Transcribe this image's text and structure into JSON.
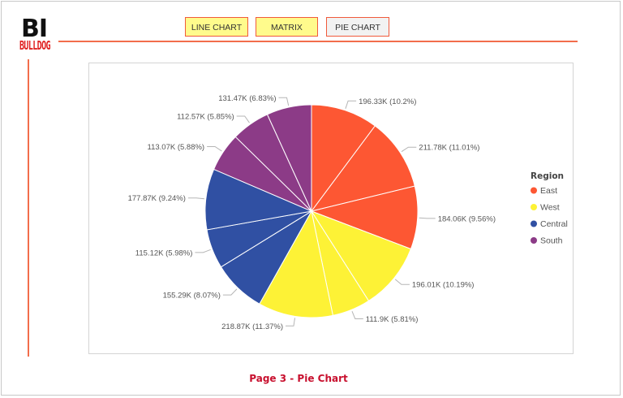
{
  "logo": {
    "bi": "BI",
    "brand": "BULLDOG"
  },
  "nav": {
    "line_chart": "LINE CHART",
    "matrix": "MATRIX",
    "pie_chart": "PIE CHART"
  },
  "footer": {
    "title": "Page 3 - Pie Chart"
  },
  "chart_data": {
    "type": "pie",
    "legend_title": "Region",
    "legend_position": "right",
    "regions": [
      {
        "name": "East",
        "color": "#fd5733"
      },
      {
        "name": "West",
        "color": "#fdf236"
      },
      {
        "name": "Central",
        "color": "#3050a3"
      },
      {
        "name": "South",
        "color": "#8c3b87"
      }
    ],
    "slices": [
      {
        "region": "East",
        "value": 196.33,
        "label": "196.33K (10.2%)"
      },
      {
        "region": "East",
        "value": 211.78,
        "label": "211.78K (11.01%)"
      },
      {
        "region": "East",
        "value": 184.06,
        "label": "184.06K (9.56%)"
      },
      {
        "region": "West",
        "value": 196.01,
        "label": "196.01K (10.19%)"
      },
      {
        "region": "West",
        "value": 111.9,
        "label": "111.9K (5.81%)"
      },
      {
        "region": "West",
        "value": 218.87,
        "label": "218.87K (11.37%)"
      },
      {
        "region": "Central",
        "value": 155.29,
        "label": "155.29K (8.07%)"
      },
      {
        "region": "Central",
        "value": 115.12,
        "label": "115.12K (5.98%)"
      },
      {
        "region": "Central",
        "value": 177.87,
        "label": "177.87K (9.24%)"
      },
      {
        "region": "South",
        "value": 113.07,
        "label": "113.07K (5.88%)"
      },
      {
        "region": "South",
        "value": 112.57,
        "label": "112.57K (5.85%)"
      },
      {
        "region": "South",
        "value": 131.47,
        "label": "131.47K (6.83%)"
      }
    ]
  }
}
